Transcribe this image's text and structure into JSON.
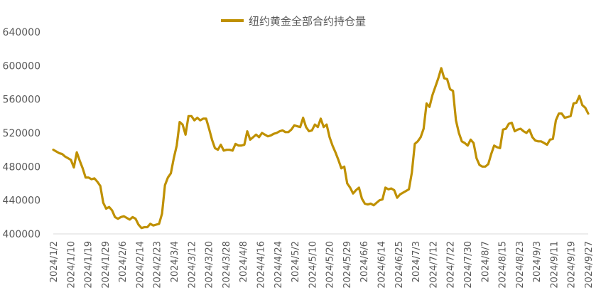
{
  "chart_data": {
    "type": "line",
    "title": "",
    "xlabel": "",
    "ylabel": "",
    "ylim": [
      400000,
      640000
    ],
    "yticks": [
      "640000",
      "600000",
      "560000",
      "520000",
      "480000",
      "440000",
      "400000"
    ],
    "ytick_values": [
      640000,
      600000,
      560000,
      520000,
      480000,
      440000,
      400000
    ],
    "grid": false,
    "legend_position": "top-center",
    "x_tick_labels": [
      "2024/1/2",
      "2024/1/10",
      "2024/1/19",
      "2024/1/29",
      "2024/2/6",
      "2024/2/14",
      "2024/2/23",
      "2024/3/4",
      "2024/3/12",
      "2024/3/20",
      "2024/3/28",
      "2024/4/8",
      "2024/4/16",
      "2024/4/24",
      "2024/5/2",
      "2024/5/10",
      "2024/5/20",
      "2024/5/29",
      "2024/6/6",
      "2024/6/14",
      "2024/6/25",
      "2024/7/3",
      "2024/7/12",
      "2024/7/22",
      "2024/7/30",
      "2024/8/7",
      "2024/8/15",
      "2024/8/23",
      "2024/9/3",
      "2024/9/11",
      "2024/9/19",
      "2024/9/27"
    ],
    "series": [
      {
        "name": "纽约黄金全部合约持仓量",
        "color": "#BF9000",
        "values": [
          500000,
          498000,
          496000,
          495000,
          492000,
          490000,
          488000,
          479000,
          497000,
          487000,
          478000,
          467000,
          467000,
          465000,
          466000,
          462000,
          457000,
          437000,
          430000,
          432000,
          428000,
          420000,
          418000,
          420000,
          421000,
          419000,
          417000,
          420000,
          418000,
          411000,
          407000,
          408000,
          408000,
          412000,
          410000,
          411000,
          412000,
          424000,
          458000,
          467000,
          472000,
          490000,
          505000,
          533000,
          530000,
          518000,
          540000,
          540000,
          535000,
          538000,
          535000,
          537000,
          537000,
          525000,
          512000,
          502000,
          500000,
          506000,
          499000,
          500000,
          500000,
          499000,
          507000,
          505000,
          505000,
          506000,
          522000,
          512000,
          515000,
          518000,
          515000,
          520000,
          518000,
          516000,
          517000,
          519000,
          520000,
          522000,
          523000,
          521000,
          521000,
          524000,
          529000,
          528000,
          527000,
          538000,
          527000,
          522000,
          523000,
          530000,
          527000,
          537000,
          527000,
          530000,
          515000,
          505000,
          497000,
          488000,
          478000,
          480000,
          460000,
          455000,
          448000,
          452000,
          455000,
          442000,
          436000,
          435000,
          436000,
          434000,
          437000,
          440000,
          441000,
          455000,
          453000,
          454000,
          452000,
          443000,
          447000,
          449000,
          451000,
          453000,
          473000,
          507000,
          510000,
          515000,
          525000,
          555000,
          551000,
          565000,
          575000,
          585000,
          597000,
          585000,
          584000,
          572000,
          570000,
          535000,
          520000,
          510000,
          508000,
          505000,
          512000,
          508000,
          490000,
          482000,
          480000,
          480000,
          483000,
          495000,
          505000,
          503000,
          502000,
          524000,
          525000,
          531000,
          532000,
          522000,
          524000,
          525000,
          522000,
          520000,
          524000,
          515000,
          511000,
          510000,
          510000,
          508000,
          506000,
          512000,
          513000,
          535000,
          543000,
          543000,
          538000,
          539000,
          540000,
          555000,
          556000,
          564000,
          553000,
          550000,
          543000
        ]
      }
    ]
  }
}
